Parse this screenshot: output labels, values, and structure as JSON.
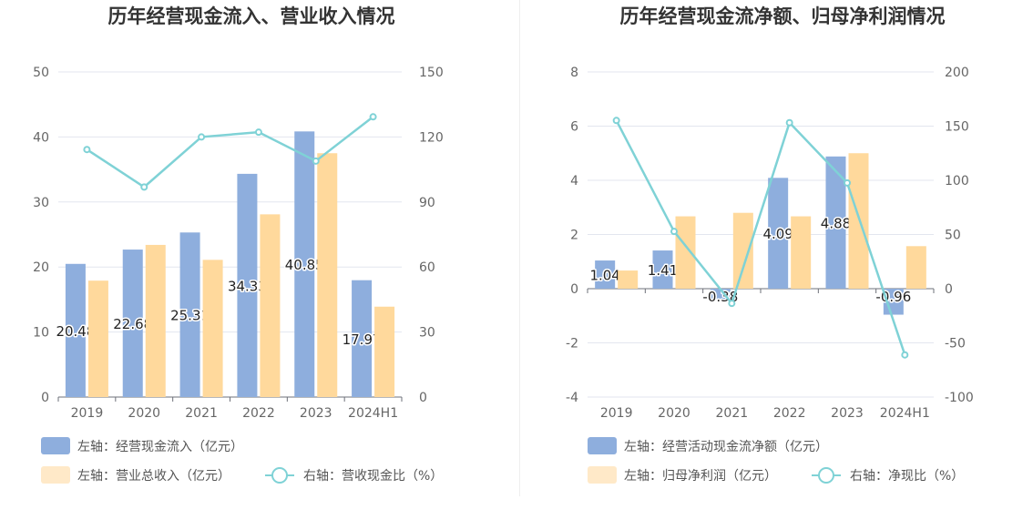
{
  "chart_data": [
    {
      "type": "bar",
      "title": "历年经营现金流入、营业收入情况",
      "categories": [
        "2019",
        "2020",
        "2021",
        "2022",
        "2023",
        "2024H1"
      ],
      "left_axis": {
        "ylim": [
          0,
          50
        ],
        "ticks": [
          "0",
          "10",
          "20",
          "30",
          "40",
          "50"
        ]
      },
      "right_axis": {
        "ylim": [
          0,
          150
        ],
        "ticks": [
          "0",
          "30",
          "60",
          "90",
          "120",
          "150"
        ]
      },
      "series": [
        {
          "name": "左轴：经营现金流入（亿元）",
          "type": "bar",
          "axis": "left",
          "color": "#8eaedd",
          "values": [
            20.48,
            22.68,
            25.31,
            34.33,
            40.85,
            17.97
          ],
          "labels": [
            "20.48",
            "22.68",
            "25.31",
            "34.33",
            "40.85",
            "17.97"
          ]
        },
        {
          "name": "左轴：营业总收入（亿元）",
          "type": "bar",
          "axis": "left",
          "color": "#ffd99c",
          "values": [
            17.9,
            23.4,
            21.1,
            28.1,
            37.5,
            13.9
          ]
        },
        {
          "name": "右轴：营收现金比（%）",
          "type": "line",
          "axis": "right",
          "color": "#7fd2d6",
          "values": [
            114.2,
            96.9,
            120.0,
            122.2,
            108.9,
            129.3
          ]
        }
      ],
      "grid": true,
      "legend_position": "bottom"
    },
    {
      "type": "bar",
      "title": "历年经营现金流净额、归母净利润情况",
      "categories": [
        "2019",
        "2020",
        "2021",
        "2022",
        "2023",
        "2024H1"
      ],
      "left_axis": {
        "ylim": [
          -4,
          8
        ],
        "ticks": [
          "-4",
          "-2",
          "0",
          "2",
          "4",
          "6",
          "8"
        ]
      },
      "right_axis": {
        "ylim": [
          -100,
          200
        ],
        "ticks": [
          "-100",
          "-50",
          "0",
          "50",
          "100",
          "150",
          "200"
        ]
      },
      "series": [
        {
          "name": "左轴：经营活动现金流净额（亿元）",
          "type": "bar",
          "axis": "left",
          "color": "#8eaedd",
          "values": [
            1.04,
            1.41,
            -0.38,
            4.09,
            4.88,
            -0.96
          ],
          "labels": [
            "1.04",
            "1.41",
            "-0.38",
            "4.09",
            "4.88",
            "-0.96"
          ]
        },
        {
          "name": "左轴：归母净利润（亿元）",
          "type": "bar",
          "axis": "left",
          "color": "#ffd99c",
          "values": [
            0.67,
            2.67,
            2.8,
            2.67,
            5.0,
            1.57
          ]
        },
        {
          "name": "右轴：净现比（%）",
          "type": "line",
          "axis": "right",
          "color": "#7fd2d6",
          "values": [
            155.2,
            52.8,
            -13.6,
            153.2,
            97.6,
            -61.1
          ]
        }
      ],
      "grid": true,
      "legend_position": "bottom"
    }
  ],
  "legend_icons": [
    "bar-swatch",
    "bar-swatch",
    "line-circle-icon"
  ]
}
